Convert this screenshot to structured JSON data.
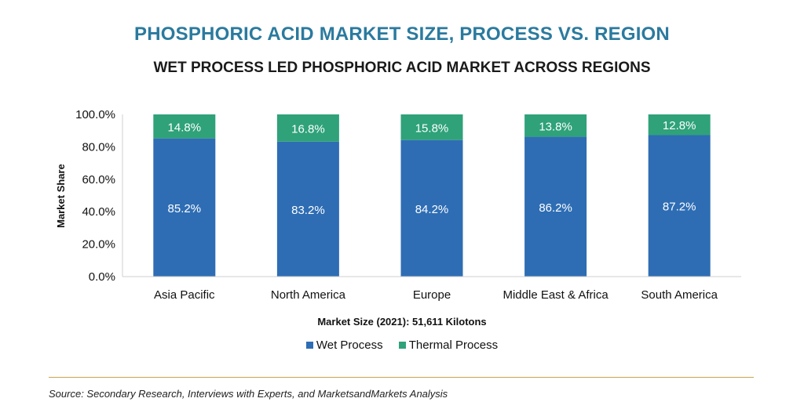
{
  "header": {
    "title": "PHOSPHORIC ACID MARKET SIZE, PROCESS VS. REGION",
    "subtitle": "WET PROCESS LED PHOSPHORIC ACID MARKET ACROSS REGIONS"
  },
  "chart_data": {
    "type": "bar",
    "stacked": true,
    "title": "PHOSPHORIC ACID MARKET SIZE, PROCESS VS. REGION",
    "subtitle": "WET PROCESS LED PHOSPHORIC ACID MARKET ACROSS REGIONS",
    "xlabel": "",
    "ylabel": "Market Share",
    "ylim": [
      0,
      100
    ],
    "yticks": [
      "0.0%",
      "20.0%",
      "40.0%",
      "60.0%",
      "80.0%",
      "100.0%"
    ],
    "categories": [
      "Asia Pacific",
      "North America",
      "Europe",
      "Middle East & Africa",
      "South America"
    ],
    "series": [
      {
        "name": "Wet Process",
        "values": [
          85.2,
          83.2,
          84.2,
          86.2,
          87.2
        ],
        "labels": [
          "85.2%",
          "83.2%",
          "84.2%",
          "86.2%",
          "87.2%"
        ],
        "color": "#2e6db4"
      },
      {
        "name": "Thermal Process",
        "values": [
          14.8,
          16.8,
          15.8,
          13.8,
          12.8
        ],
        "labels": [
          "14.8%",
          "16.8%",
          "15.8%",
          "13.8%",
          "12.8%"
        ],
        "color": "#2fa27a"
      }
    ],
    "grid": false,
    "legend": "bottom-center"
  },
  "footnote": "Market Size (2021): 51,611 Kilotons",
  "source": "Source: Secondary Research, Interviews with Experts, and MarketsandMarkets Analysis"
}
